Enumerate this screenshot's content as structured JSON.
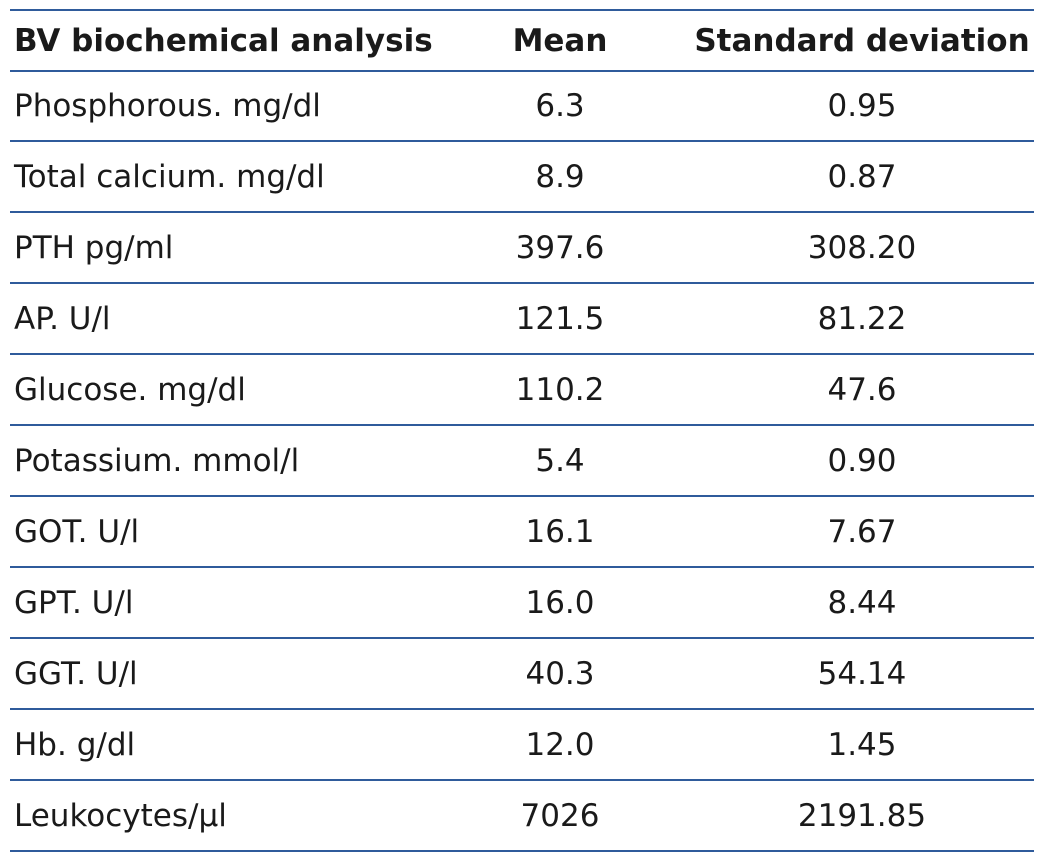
{
  "table": {
    "header": [
      "BV biochemical analysis",
      "Mean",
      "Standard deviation"
    ],
    "rows": [
      [
        "Phosphorous. mg/dl",
        "6.3",
        "0.95"
      ],
      [
        "Total calcium. mg/dl",
        "8.9",
        "0.87"
      ],
      [
        "PTH pg/ml",
        "397.6",
        "308.20"
      ],
      [
        "AP. U/l",
        "121.5",
        "81.22"
      ],
      [
        "Glucose. mg/dl",
        "110.2",
        "47.6"
      ],
      [
        "Potassium. mmol/l",
        "5.4",
        "0.90"
      ],
      [
        "GOT. U/l",
        "16.1",
        "7.67"
      ],
      [
        "GPT. U/l",
        "16.0",
        "8.44"
      ],
      [
        "GGT. U/l",
        "40.3",
        "54.14"
      ],
      [
        "Hb. g/dl",
        "12.0",
        "1.45"
      ],
      [
        "Leukocytes/μl",
        "7026",
        "2191.85"
      ]
    ]
  }
}
